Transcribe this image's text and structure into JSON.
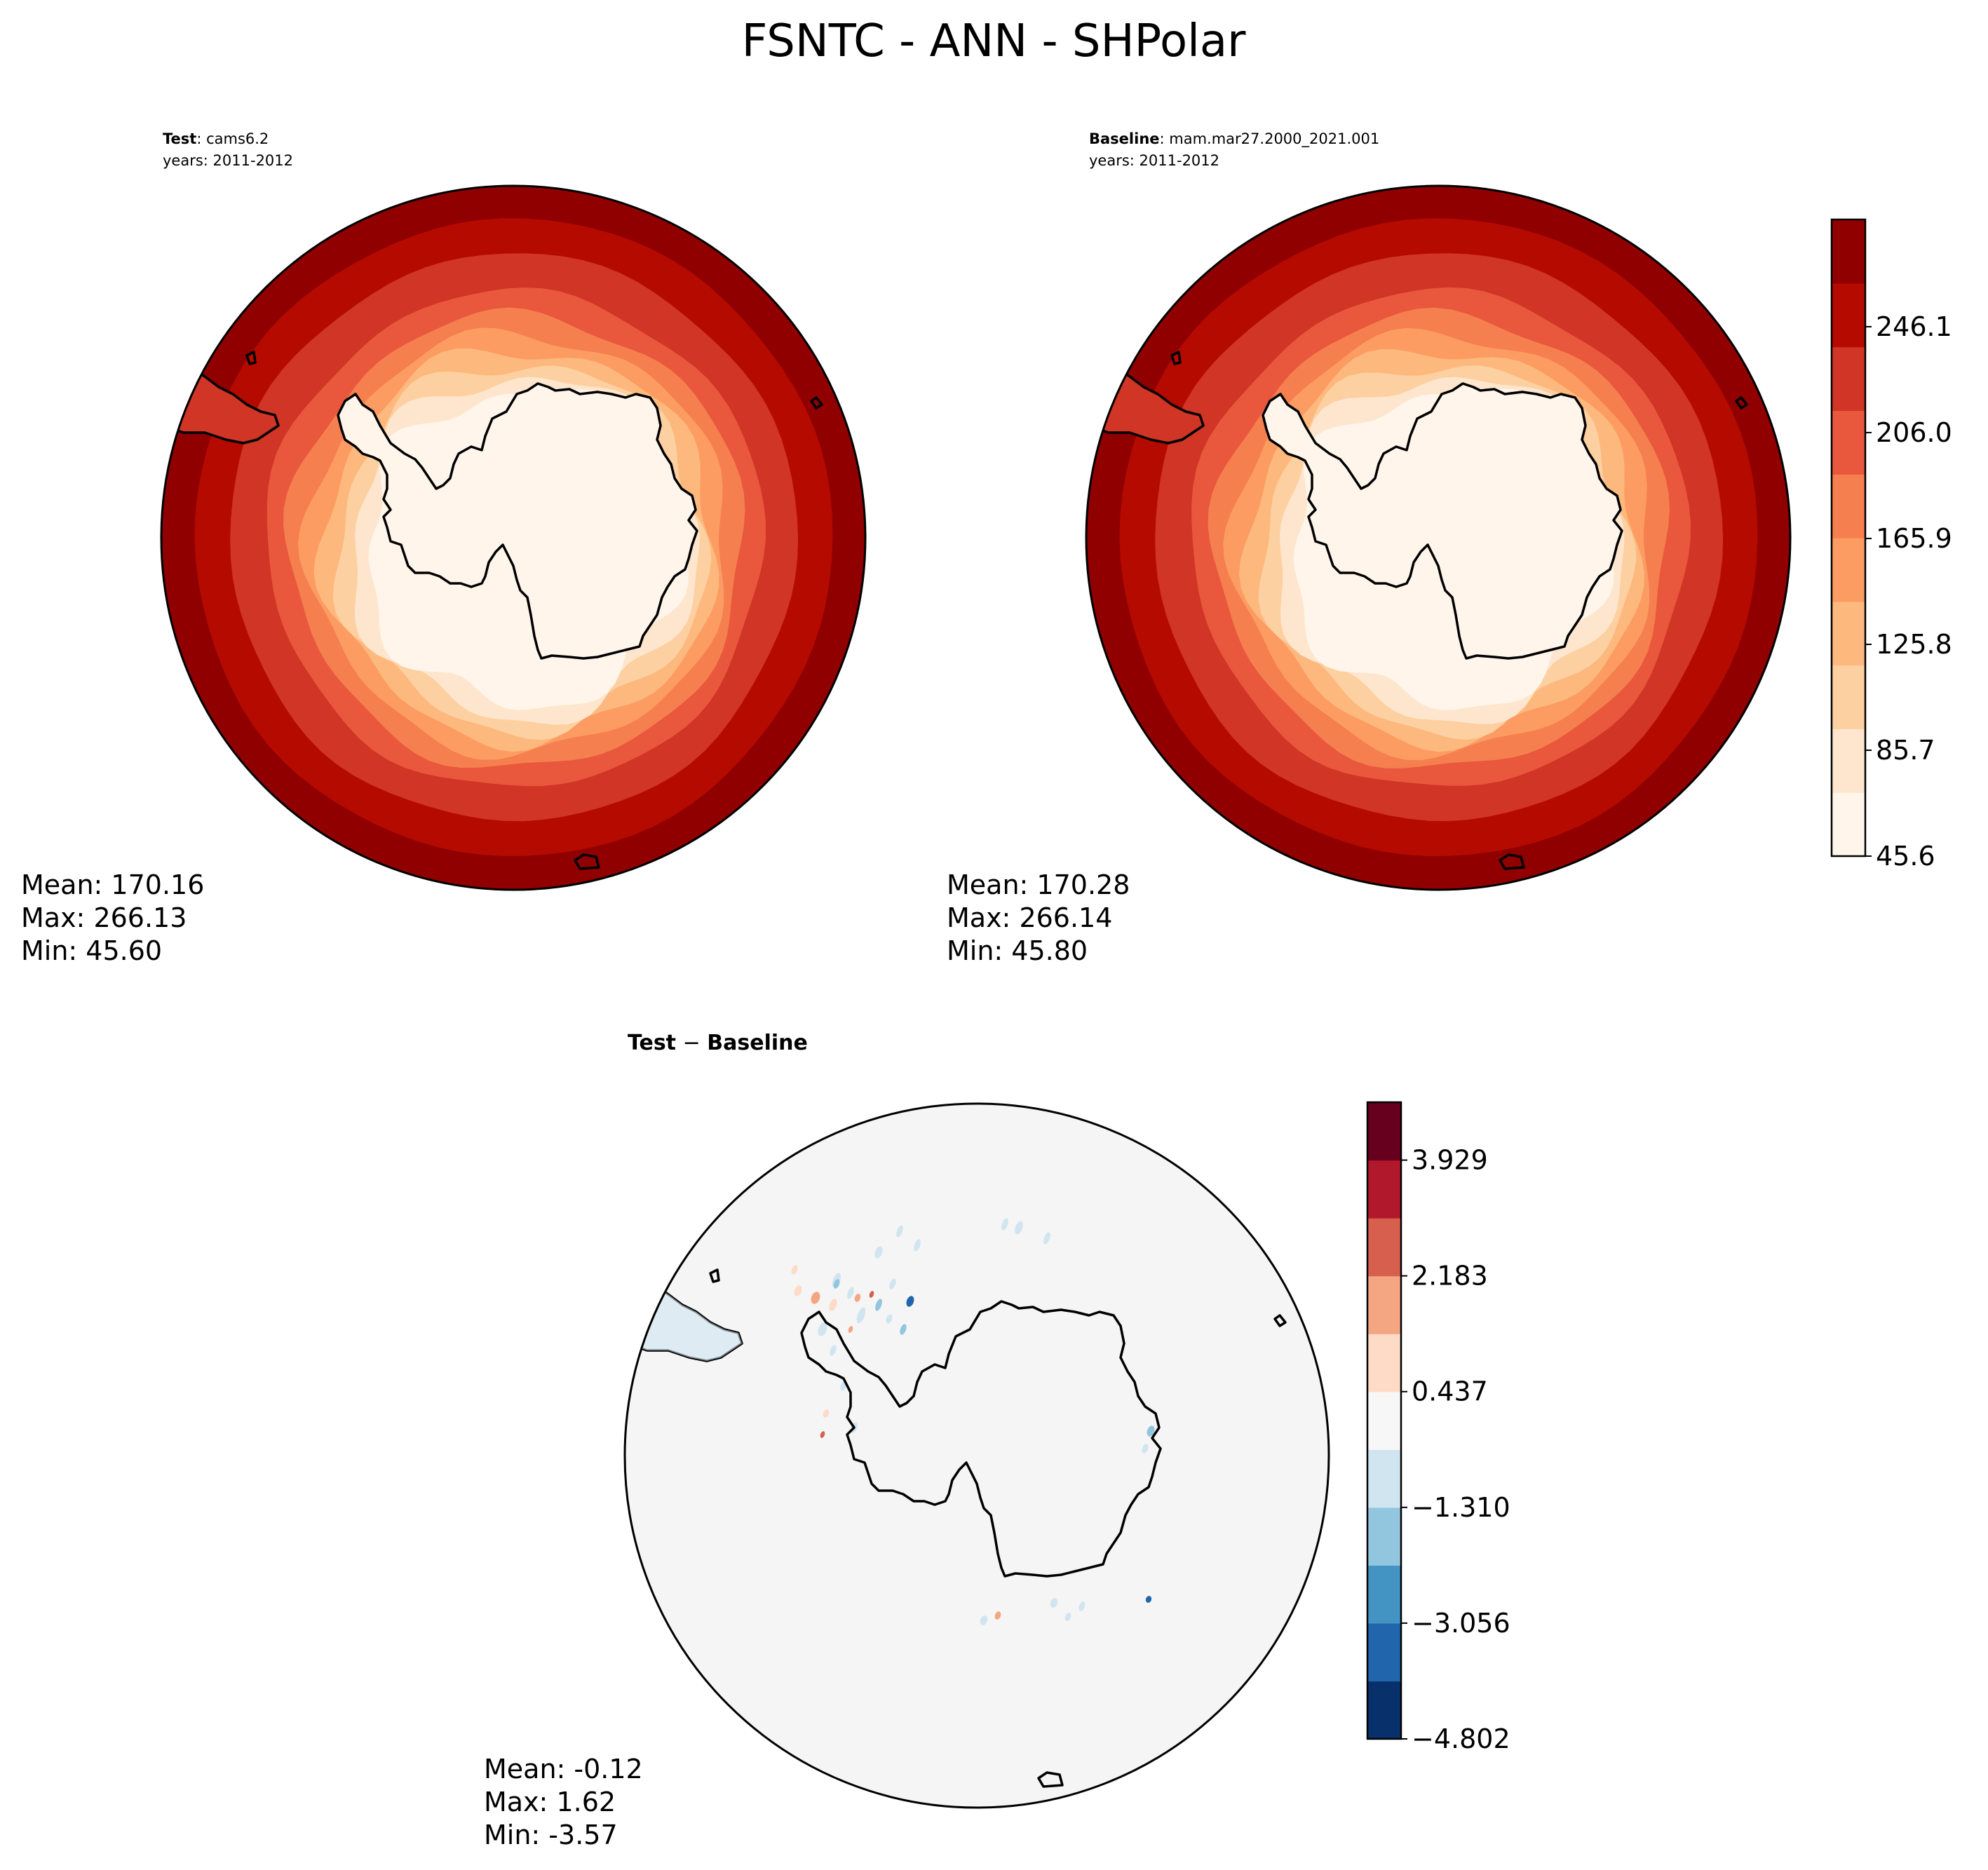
{
  "figure": {
    "title": "FSNTC - ANN - SHPolar"
  },
  "test_panel": {
    "label_bold": "Test",
    "label_rest": ": cams6.2",
    "years": "years: 2011-2012",
    "stats": {
      "mean": "Mean: 170.16",
      "max": "Max: 266.13",
      "min": "Min: 45.60"
    }
  },
  "baseline_panel": {
    "label_bold": "Baseline",
    "label_rest": ": mam.mar27.2000_2021.001",
    "years": "years: 2011-2012",
    "stats": {
      "mean": "Mean: 170.28",
      "max": "Max: 266.14",
      "min": "Min: 45.80"
    }
  },
  "diff_panel": {
    "title_a": "Test",
    "title_op": " − ",
    "title_b": "Baseline",
    "stats": {
      "mean": "Mean: -0.12",
      "max": "Max:  1.62",
      "min": "Min: -3.57"
    }
  },
  "colorbar_main": {
    "min": 45.6,
    "max": 266.1,
    "tick_labels": [
      "45.6",
      "85.7",
      "125.8",
      "165.9",
      "206.0",
      "246.1"
    ],
    "tick_values": [
      45.6,
      85.7,
      125.8,
      165.9,
      206.0,
      246.1
    ],
    "colors": [
      "#fff5eb",
      "#fee6ce",
      "#fdd0a2",
      "#fdb97d",
      "#fc9c62",
      "#f57f4e",
      "#e9573d",
      "#d03525",
      "#b50a00",
      "#900000"
    ]
  },
  "colorbar_diff": {
    "tick_labels": [
      "−4.802",
      "−3.056",
      "−1.310",
      "0.437",
      "2.183",
      "3.929"
    ],
    "colors": [
      "#08306b",
      "#2166ac",
      "#4393c3",
      "#92c5de",
      "#d1e5f0",
      "#f7f7f7",
      "#fddbc7",
      "#f4a582",
      "#d6604d",
      "#b2182b",
      "#67001f"
    ]
  }
}
